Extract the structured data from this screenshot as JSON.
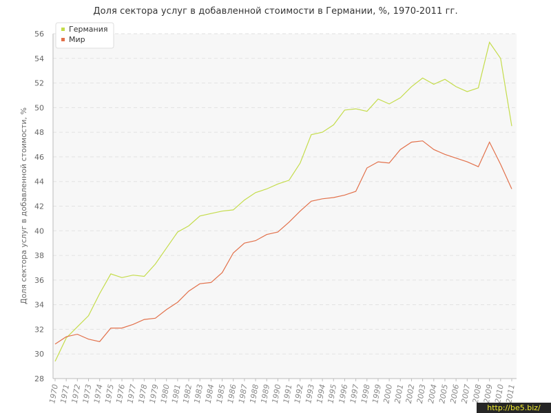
{
  "chart_data": {
    "type": "line",
    "title": "Доля сектора услуг в добавленной стоимости в Германии, %, 1970-2011 гг.",
    "ylabel": "Доля сектора услуг в добавленной стоимости, %",
    "xlabel": "",
    "ylim": [
      28,
      56
    ],
    "yticks": [
      28,
      30,
      32,
      34,
      36,
      38,
      40,
      42,
      44,
      46,
      48,
      50,
      52,
      54,
      56
    ],
    "grid": true,
    "legend_position": "top-left",
    "x": [
      "1970",
      "1971",
      "1972",
      "1973",
      "1974",
      "1975",
      "1976",
      "1977",
      "1978",
      "1979",
      "1980",
      "1981",
      "1982",
      "1983",
      "1984",
      "1985",
      "1986",
      "1987",
      "1988",
      "1989",
      "1990",
      "1991",
      "1992",
      "1993",
      "1994",
      "1995",
      "1996",
      "1997",
      "1998",
      "1999",
      "2000",
      "2001",
      "2002",
      "2003",
      "2004",
      "2005",
      "2006",
      "2007",
      "2008",
      "2009",
      "2010",
      "2011"
    ],
    "series": [
      {
        "name": "Германия",
        "color": "#c4dc4a",
        "values": [
          29.4,
          31.3,
          32.2,
          33.1,
          34.9,
          36.5,
          36.2,
          36.4,
          36.3,
          37.3,
          38.6,
          39.9,
          40.4,
          41.2,
          41.4,
          41.6,
          41.7,
          42.5,
          43.1,
          43.4,
          43.8,
          44.1,
          45.5,
          47.8,
          48.0,
          48.6,
          49.8,
          49.9,
          49.7,
          50.7,
          50.3,
          50.8,
          51.7,
          52.4,
          51.9,
          52.3,
          51.7,
          51.3,
          51.6,
          55.3,
          54.0,
          48.5
        ]
      },
      {
        "name": "Мир",
        "color": "#e2704a",
        "values": [
          30.8,
          31.4,
          31.6,
          31.2,
          31.0,
          32.1,
          32.1,
          32.4,
          32.8,
          32.9,
          33.6,
          34.2,
          35.1,
          35.7,
          35.8,
          36.6,
          38.2,
          39.0,
          39.2,
          39.7,
          39.9,
          40.7,
          41.6,
          42.4,
          42.6,
          42.7,
          42.9,
          43.2,
          45.1,
          45.6,
          45.5,
          46.6,
          47.2,
          47.3,
          46.6,
          46.2,
          45.9,
          45.6,
          45.2,
          47.2,
          45.4,
          43.4
        ]
      }
    ]
  },
  "watermark": "http://be5.biz/"
}
